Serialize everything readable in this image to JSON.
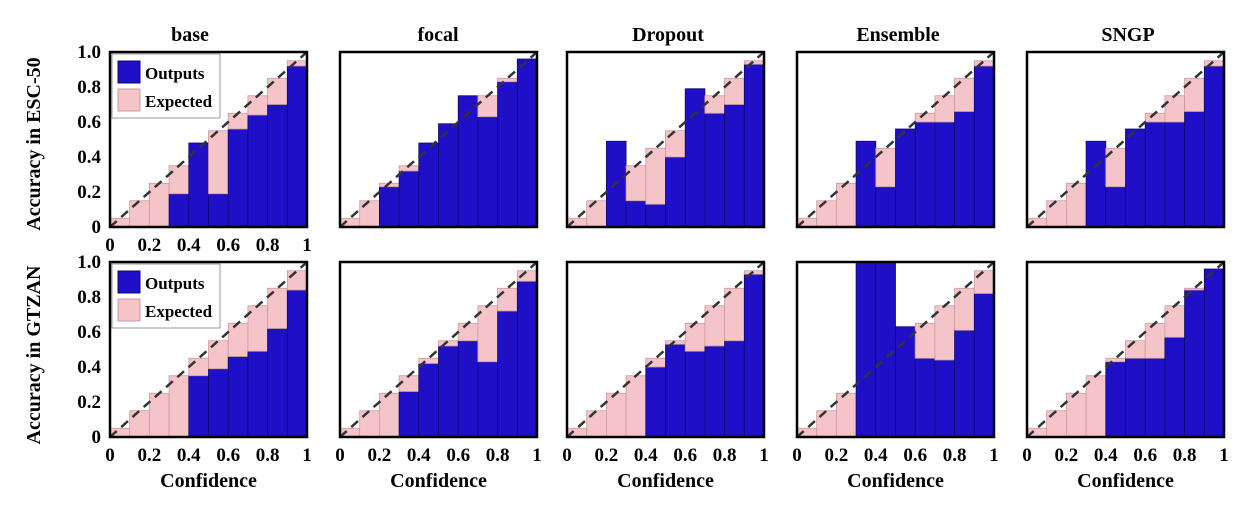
{
  "figure": {
    "column_titles": [
      "base",
      "focal",
      "Dropout",
      "Ensemble",
      "SNGP"
    ],
    "row_labels": [
      "Accuracy in ESC-50",
      "Accuracy in GTZAN"
    ],
    "x_label": "Confidence",
    "legend": {
      "outputs": "Outputs",
      "expected": "Expected"
    },
    "colors": {
      "outputs": "#1f10c8",
      "outputs_edge": "#10086e",
      "expected": "#f4c4c8",
      "expected_edge": "#c89aa0",
      "diagonal": "#333333"
    }
  },
  "chart_data": [
    {
      "type": "bar",
      "title": "base",
      "ylabel": "Accuracy in ESC-50",
      "xlabel": "",
      "row": 0,
      "col": 0,
      "legend": true,
      "xlim": [
        0,
        1
      ],
      "ylim": [
        0,
        1
      ],
      "xticks": [
        "0",
        "0.2",
        "0.4",
        "0.6",
        "0.8",
        "1"
      ],
      "yticks": [
        "0",
        "0.2",
        "0.4",
        "0.6",
        "0.8",
        "1.0"
      ],
      "bins": [
        0.05,
        0.15,
        0.25,
        0.35,
        0.45,
        0.55,
        0.65,
        0.75,
        0.85,
        0.95
      ],
      "series": [
        {
          "name": "Outputs",
          "values": [
            0,
            0,
            0,
            0.19,
            0.48,
            0.19,
            0.56,
            0.64,
            0.7,
            0.92
          ]
        },
        {
          "name": "Expected",
          "values": [
            0.05,
            0.15,
            0.25,
            0.35,
            0.45,
            0.55,
            0.65,
            0.75,
            0.85,
            0.95
          ]
        }
      ]
    },
    {
      "type": "bar",
      "title": "focal",
      "ylabel": "",
      "xlabel": "",
      "row": 0,
      "col": 1,
      "legend": false,
      "xlim": [
        0,
        1
      ],
      "ylim": [
        0,
        1
      ],
      "xticks": [],
      "yticks": [],
      "bins": [
        0.05,
        0.15,
        0.25,
        0.35,
        0.45,
        0.55,
        0.65,
        0.75,
        0.85,
        0.95
      ],
      "series": [
        {
          "name": "Outputs",
          "values": [
            0,
            0,
            0.23,
            0.32,
            0.48,
            0.59,
            0.75,
            0.63,
            0.83,
            0.96
          ]
        },
        {
          "name": "Expected",
          "values": [
            0.05,
            0.15,
            0.25,
            0.35,
            0.45,
            0.55,
            0.65,
            0.75,
            0.85,
            0.95
          ]
        }
      ]
    },
    {
      "type": "bar",
      "title": "Dropout",
      "ylabel": "",
      "xlabel": "",
      "row": 0,
      "col": 2,
      "legend": false,
      "xlim": [
        0,
        1
      ],
      "ylim": [
        0,
        1
      ],
      "xticks": [],
      "yticks": [],
      "bins": [
        0.05,
        0.15,
        0.25,
        0.35,
        0.45,
        0.55,
        0.65,
        0.75,
        0.85,
        0.95
      ],
      "series": [
        {
          "name": "Outputs",
          "values": [
            0,
            0,
            0.49,
            0.15,
            0.13,
            0.4,
            0.79,
            0.65,
            0.7,
            0.93
          ]
        },
        {
          "name": "Expected",
          "values": [
            0.05,
            0.15,
            0.25,
            0.35,
            0.45,
            0.55,
            0.65,
            0.75,
            0.85,
            0.95
          ]
        }
      ]
    },
    {
      "type": "bar",
      "title": "Ensemble",
      "ylabel": "",
      "xlabel": "",
      "row": 0,
      "col": 3,
      "legend": false,
      "xlim": [
        0,
        1
      ],
      "ylim": [
        0,
        1
      ],
      "xticks": [],
      "yticks": [],
      "bins": [
        0.05,
        0.15,
        0.25,
        0.35,
        0.45,
        0.55,
        0.65,
        0.75,
        0.85,
        0.95
      ],
      "series": [
        {
          "name": "Outputs",
          "values": [
            0,
            0,
            0,
            0.49,
            0.23,
            0.56,
            0.6,
            0.6,
            0.66,
            0.92
          ]
        },
        {
          "name": "Expected",
          "values": [
            0.05,
            0.15,
            0.25,
            0.35,
            0.45,
            0.55,
            0.65,
            0.75,
            0.85,
            0.95
          ]
        }
      ]
    },
    {
      "type": "bar",
      "title": "SNGP",
      "ylabel": "",
      "xlabel": "",
      "row": 0,
      "col": 4,
      "legend": false,
      "xlim": [
        0,
        1
      ],
      "ylim": [
        0,
        1
      ],
      "xticks": [],
      "yticks": [],
      "bins": [
        0.05,
        0.15,
        0.25,
        0.35,
        0.45,
        0.55,
        0.65,
        0.75,
        0.85,
        0.95
      ],
      "series": [
        {
          "name": "Outputs",
          "values": [
            0,
            0,
            0,
            0.49,
            0.23,
            0.56,
            0.6,
            0.6,
            0.66,
            0.92
          ]
        },
        {
          "name": "Expected",
          "values": [
            0.05,
            0.15,
            0.25,
            0.35,
            0.45,
            0.55,
            0.65,
            0.75,
            0.85,
            0.95
          ]
        }
      ]
    },
    {
      "type": "bar",
      "title": "",
      "ylabel": "Accuracy in GTZAN",
      "xlabel": "Confidence",
      "row": 1,
      "col": 0,
      "legend": true,
      "xlim": [
        0,
        1
      ],
      "ylim": [
        0,
        1
      ],
      "xticks": [
        "0",
        "0.2",
        "0.4",
        "0.6",
        "0.8",
        "1"
      ],
      "yticks": [
        "0",
        "0.2",
        "0.4",
        "0.6",
        "0.8",
        "1.0"
      ],
      "bins": [
        0.05,
        0.15,
        0.25,
        0.35,
        0.45,
        0.55,
        0.65,
        0.75,
        0.85,
        0.95
      ],
      "series": [
        {
          "name": "Outputs",
          "values": [
            0,
            0,
            0,
            0,
            0.35,
            0.39,
            0.46,
            0.49,
            0.62,
            0.84
          ]
        },
        {
          "name": "Expected",
          "values": [
            0.05,
            0.15,
            0.25,
            0.35,
            0.45,
            0.55,
            0.65,
            0.75,
            0.85,
            0.95
          ]
        }
      ]
    },
    {
      "type": "bar",
      "title": "",
      "ylabel": "",
      "xlabel": "Confidence",
      "row": 1,
      "col": 1,
      "legend": false,
      "xlim": [
        0,
        1
      ],
      "ylim": [
        0,
        1
      ],
      "xticks": [
        "0",
        "0.2",
        "0.4",
        "0.6",
        "0.8",
        "1"
      ],
      "yticks": [],
      "bins": [
        0.05,
        0.15,
        0.25,
        0.35,
        0.45,
        0.55,
        0.65,
        0.75,
        0.85,
        0.95
      ],
      "series": [
        {
          "name": "Outputs",
          "values": [
            0,
            0,
            0,
            0.26,
            0.42,
            0.52,
            0.55,
            0.43,
            0.72,
            0.89
          ]
        },
        {
          "name": "Expected",
          "values": [
            0.05,
            0.15,
            0.25,
            0.35,
            0.45,
            0.55,
            0.65,
            0.75,
            0.85,
            0.95
          ]
        }
      ]
    },
    {
      "type": "bar",
      "title": "",
      "ylabel": "",
      "xlabel": "Confidence",
      "row": 1,
      "col": 2,
      "legend": false,
      "xlim": [
        0,
        1
      ],
      "ylim": [
        0,
        1
      ],
      "xticks": [
        "0",
        "0.2",
        "0.4",
        "0.6",
        "0.8",
        "1"
      ],
      "yticks": [],
      "bins": [
        0.05,
        0.15,
        0.25,
        0.35,
        0.45,
        0.55,
        0.65,
        0.75,
        0.85,
        0.95
      ],
      "series": [
        {
          "name": "Outputs",
          "values": [
            0,
            0,
            0,
            0,
            0.4,
            0.53,
            0.49,
            0.52,
            0.55,
            0.93
          ]
        },
        {
          "name": "Expected",
          "values": [
            0.05,
            0.15,
            0.25,
            0.35,
            0.45,
            0.55,
            0.65,
            0.75,
            0.85,
            0.95
          ]
        }
      ]
    },
    {
      "type": "bar",
      "title": "",
      "ylabel": "",
      "xlabel": "Confidence",
      "row": 1,
      "col": 3,
      "legend": false,
      "xlim": [
        0,
        1
      ],
      "ylim": [
        0,
        1
      ],
      "xticks": [
        "0",
        "0.2",
        "0.4",
        "0.6",
        "0.8",
        "1"
      ],
      "yticks": [],
      "bins": [
        0.05,
        0.15,
        0.25,
        0.35,
        0.45,
        0.55,
        0.65,
        0.75,
        0.85,
        0.95
      ],
      "series": [
        {
          "name": "Outputs",
          "values": [
            0,
            0,
            0,
            1.0,
            1.0,
            0.63,
            0.45,
            0.44,
            0.61,
            0.82
          ]
        },
        {
          "name": "Expected",
          "values": [
            0.05,
            0.15,
            0.25,
            0.35,
            0.45,
            0.55,
            0.65,
            0.75,
            0.85,
            0.95
          ]
        }
      ]
    },
    {
      "type": "bar",
      "title": "",
      "ylabel": "",
      "xlabel": "Confidence",
      "row": 1,
      "col": 4,
      "legend": false,
      "xlim": [
        0,
        1
      ],
      "ylim": [
        0,
        1
      ],
      "xticks": [
        "0",
        "0.2",
        "0.4",
        "0.6",
        "0.8",
        "1"
      ],
      "yticks": [],
      "bins": [
        0.05,
        0.15,
        0.25,
        0.35,
        0.45,
        0.55,
        0.65,
        0.75,
        0.85,
        0.95
      ],
      "series": [
        {
          "name": "Outputs",
          "values": [
            0,
            0,
            0,
            0,
            0.43,
            0.45,
            0.45,
            0.57,
            0.84,
            0.96
          ]
        },
        {
          "name": "Expected",
          "values": [
            0.05,
            0.15,
            0.25,
            0.35,
            0.45,
            0.55,
            0.65,
            0.75,
            0.85,
            0.95
          ]
        }
      ]
    }
  ]
}
